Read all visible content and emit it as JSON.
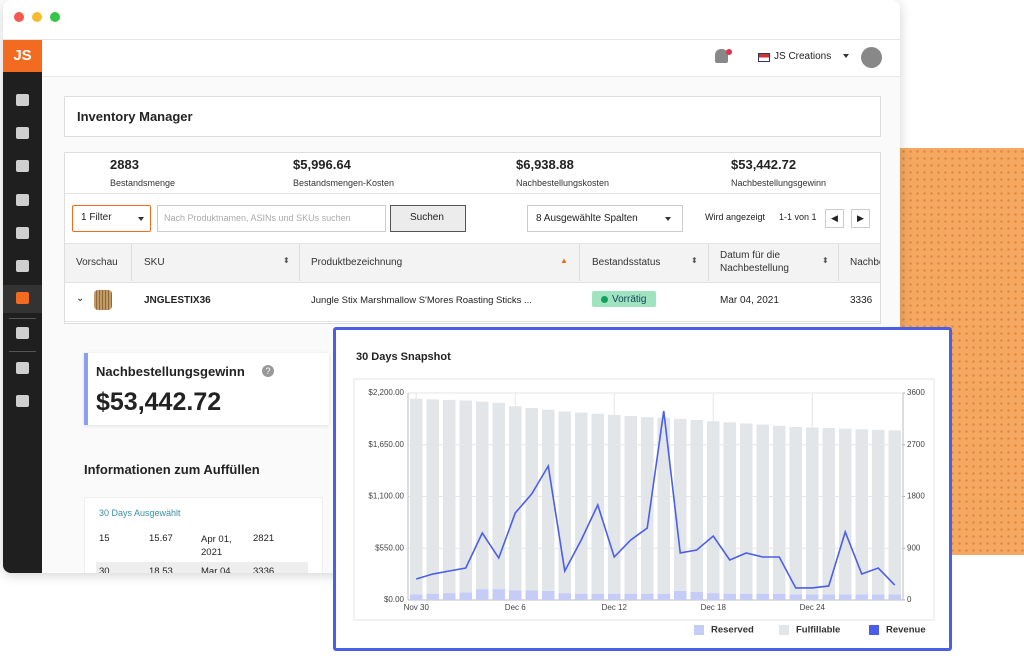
{
  "app": {
    "logo": "JS",
    "account": "JS Creations"
  },
  "header": {
    "title": "Inventory Manager"
  },
  "stats": [
    {
      "value": "2883",
      "label": "Bestandsmenge"
    },
    {
      "value": "$5,996.64",
      "label": "Bestandsmengen-Kosten"
    },
    {
      "value": "$6,938.88",
      "label": "Nachbestellungskosten"
    },
    {
      "value": "$53,442.72",
      "label": "Nachbestellungsgewinn"
    }
  ],
  "filters": {
    "filter": "1 Filter",
    "search_placeholder": "Nach Produktnamen, ASINs und SKUs suchen",
    "search_button": "Suchen",
    "columns": "8 Ausgewählte Spalten",
    "showing": "Wird angezeigt",
    "range": "1-1 von 1"
  },
  "table": {
    "columns": [
      "Vorschau",
      "SKU",
      "Produktbezeichnung",
      "Bestandsstatus",
      "Datum für die Nachbestellung",
      "Nachbe"
    ],
    "rows": [
      {
        "sku": "JNGLESTIX36",
        "name": "Jungle Stix Marshmallow S'Mores Roasting Sticks ...",
        "status": "Vorrätig",
        "date": "Mar 04, 2021",
        "qty": "3336"
      }
    ]
  },
  "profit": {
    "label": "Nachbestellungsgewinn",
    "value": "$53,442.72"
  },
  "refill": {
    "title": "Informationen zum Auffüllen",
    "selected": "30 Days Ausgewählt",
    "rows": [
      [
        "15",
        "15.67",
        "Apr 01, 2021",
        "2821"
      ],
      [
        "30",
        "18.53",
        "Mar 04",
        "3336"
      ]
    ]
  },
  "chart_data": {
    "type": "bar",
    "title": "30 Days Snapshot",
    "stacked": true,
    "grid": true,
    "categories": [
      "Nov 30",
      null,
      null,
      null,
      null,
      null,
      "Dec 6",
      null,
      null,
      null,
      null,
      null,
      "Dec 12",
      null,
      null,
      null,
      null,
      null,
      "Dec 18",
      null,
      null,
      null,
      null,
      null,
      "Dec 24",
      null,
      null,
      null,
      null,
      null
    ],
    "series": [
      {
        "name": "Reserved",
        "color": "#c5cdf6",
        "axis": "y2",
        "values": [
          100,
          110,
          120,
          130,
          190,
          190,
          170,
          170,
          160,
          120,
          110,
          110,
          110,
          110,
          110,
          110,
          160,
          140,
          120,
          110,
          110,
          110,
          110,
          100,
          100,
          100,
          100,
          100,
          100,
          100
        ]
      },
      {
        "name": "Fulfillable",
        "color": "#e3e6e8",
        "values": [
          3400,
          3380,
          3360,
          3340,
          3260,
          3240,
          3200,
          3170,
          3150,
          3160,
          3150,
          3130,
          3110,
          3090,
          3070,
          3060,
          2990,
          2990,
          2990,
          2980,
          2960,
          2940,
          2920,
          2910,
          2900,
          2890,
          2880,
          2870,
          2860,
          2850
        ],
        "axis": "y2"
      },
      {
        "name": "Revenue",
        "color": "#4a5ee8",
        "type": "line",
        "values": [
          223,
          276,
          308,
          340,
          712,
          446,
          925,
          1127,
          1424,
          308,
          638,
          1010,
          457,
          638,
          765,
          2009,
          500,
          531,
          680,
          425,
          500,
          457,
          457,
          128,
          128,
          149,
          723,
          276,
          340,
          159
        ]
      }
    ],
    "ylim": [
      0,
      2200
    ],
    "yticks": [
      {
        "value": 0,
        "label": "$0.00"
      },
      {
        "value": 550,
        "label": "$550.00"
      },
      {
        "value": 1100,
        "label": "$1,100.00"
      },
      {
        "value": 1650,
        "label": "$1,650.00"
      },
      {
        "value": 2200,
        "label": "$2,200.00"
      }
    ],
    "y2lim": [
      0,
      3600
    ],
    "y2ticks": [
      0,
      900,
      1800,
      2700,
      3600
    ]
  }
}
